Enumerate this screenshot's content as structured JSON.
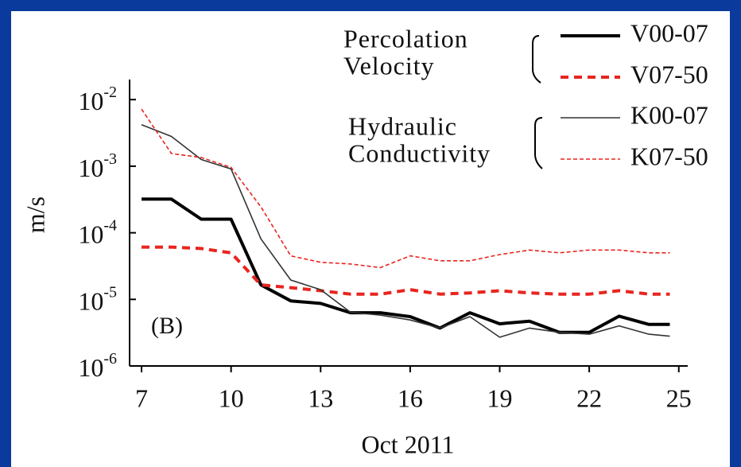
{
  "chart_data": {
    "type": "line",
    "annotation": "(B)",
    "x_label": "Oct 2011",
    "y_label": "m/s",
    "log_y": true,
    "xlim": [
      6.6,
      25.3
    ],
    "ylim": [
      1e-06,
      0.02
    ],
    "xticks": [
      7,
      10,
      13,
      16,
      19,
      22,
      25
    ],
    "yticks": [
      {
        "value": 0.01,
        "label": "10-2"
      },
      {
        "value": 0.001,
        "label": "10-3"
      },
      {
        "value": 0.0001,
        "label": "10-4"
      },
      {
        "value": 1e-05,
        "label": "10-5"
      },
      {
        "value": 1e-06,
        "label": "10-6"
      }
    ],
    "legend_groups": [
      [
        "Percolation",
        "Velocity"
      ],
      [
        "Hydraulic",
        "Conductivity"
      ]
    ],
    "x": [
      7,
      8,
      9,
      10,
      11,
      12,
      13,
      14,
      15,
      16,
      17,
      18,
      19,
      20,
      21,
      22,
      23,
      24,
      24.7
    ],
    "series": [
      {
        "name": "V00-07",
        "color": "#000000",
        "linewidth": 4,
        "dash": false,
        "values": [
          0.00032,
          0.00032,
          0.00016,
          0.00016,
          1.65e-05,
          9.5e-06,
          8.7e-06,
          6.3e-06,
          6.3e-06,
          5.5e-06,
          3.7e-06,
          6.3e-06,
          4.3e-06,
          4.7e-06,
          3.2e-06,
          3.2e-06,
          5.6e-06,
          4.2e-06,
          4.2e-06
        ]
      },
      {
        "name": "V07-50",
        "color": "#e8251f",
        "linewidth": 4,
        "dash": true,
        "values": [
          6.1e-05,
          6.1e-05,
          5.8e-05,
          5e-05,
          1.65e-05,
          1.5e-05,
          1.35e-05,
          1.2e-05,
          1.2e-05,
          1.4e-05,
          1.2e-05,
          1.25e-05,
          1.35e-05,
          1.25e-05,
          1.2e-05,
          1.2e-05,
          1.35e-05,
          1.2e-05,
          1.2e-05
        ]
      },
      {
        "name": "K00-07",
        "color": "#333333",
        "linewidth": 1.6,
        "dash": false,
        "values": [
          0.0042,
          0.0028,
          0.00126,
          0.00091,
          8.1e-05,
          1.95e-05,
          1.4e-05,
          6.4e-06,
          5.8e-06,
          4.9e-06,
          3.7e-06,
          5.5e-06,
          2.7e-06,
          3.7e-06,
          3.2e-06,
          3e-06,
          4e-06,
          3e-06,
          2.8e-06
        ]
      },
      {
        "name": "K07-50",
        "color": "#e8251f",
        "linewidth": 1.6,
        "dash": true,
        "values": [
          0.0072,
          0.00155,
          0.00135,
          0.00096,
          0.000245,
          4.5e-05,
          3.6e-05,
          3.4e-05,
          3e-05,
          4.5e-05,
          3.8e-05,
          3.8e-05,
          4.7e-05,
          5.5e-05,
          5e-05,
          5.5e-05,
          5.5e-05,
          5e-05,
          5e-05
        ]
      }
    ]
  }
}
